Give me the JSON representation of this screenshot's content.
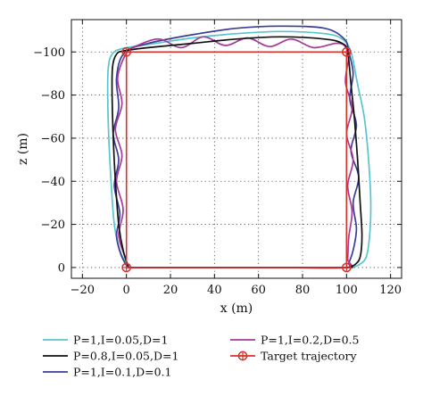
{
  "chart_data": {
    "type": "line",
    "title": "",
    "xlabel": "x (m)",
    "ylabel": "z (m)",
    "xlim": [
      -25,
      125
    ],
    "ylim": [
      5,
      -115
    ],
    "xticks": [
      -20,
      0,
      20,
      40,
      60,
      80,
      100,
      120
    ],
    "yticks": [
      -100,
      -80,
      -60,
      -40,
      -20,
      0
    ],
    "xtick_labels": [
      "−20",
      "0",
      "20",
      "40",
      "60",
      "80",
      "100",
      "120"
    ],
    "ytick_labels": [
      "−100",
      "−80",
      "−60",
      "−40",
      "−20",
      "0"
    ],
    "grid": true,
    "legend_position": "bottom",
    "series": [
      {
        "name": "P=1,I=0.05,D=1",
        "color": "#58c4d0",
        "x": [
          1,
          -3,
          -5.5,
          -7,
          -8,
          -8.5,
          -8.2,
          -6.5,
          -2,
          10,
          30,
          50,
          70,
          90,
          98,
          102,
          105,
          108,
          110,
          111,
          110.5,
          109,
          106,
          103,
          100,
          70,
          40,
          10,
          1
        ],
        "z": [
          0,
          -8,
          -20,
          -40,
          -60,
          -80,
          -93,
          -99,
          -101.5,
          -103.5,
          -106.5,
          -108.5,
          -109.5,
          -108.5,
          -106,
          -100,
          -85,
          -70,
          -50,
          -30,
          -15,
          -5,
          -1.5,
          -0.3,
          0,
          0,
          0,
          0,
          0
        ]
      },
      {
        "name": "P=0.8,I=0.05,D=1",
        "color": "#111111",
        "x": [
          1,
          -1.5,
          -3.5,
          -5,
          -6,
          -6.5,
          -6.3,
          -4.5,
          -1,
          10,
          30,
          50,
          70,
          90,
          98,
          100.5,
          102,
          103.5,
          105,
          106.2,
          107,
          106.2,
          104,
          101.5,
          100,
          70,
          40,
          10,
          1
        ],
        "z": [
          0,
          -8,
          -20,
          -40,
          -60,
          -80,
          -93,
          -99,
          -100.5,
          -102,
          -104,
          -106,
          -107,
          -106,
          -104,
          -100,
          -85,
          -70,
          -50,
          -30,
          -15,
          -5,
          -1.5,
          -0.3,
          0,
          0,
          0,
          0,
          0
        ]
      },
      {
        "name": "P=1,I=0.1,D=0.1",
        "color": "#3b3d96",
        "x": [
          0.5,
          -2.5,
          -4.5,
          -3,
          -5.5,
          -3.5,
          -6,
          -3.5,
          -4.5,
          -1,
          10,
          30,
          50,
          70,
          90,
          99,
          101,
          103,
          101.5,
          104.5,
          102,
          105.5,
          103,
          104.5,
          103,
          101,
          100,
          70,
          40,
          10,
          0.5
        ],
        "z": [
          0,
          -6,
          -15,
          -25,
          -38,
          -50,
          -62,
          -74,
          -88,
          -99.5,
          -104,
          -108,
          -111,
          -112,
          -111,
          -106,
          -100,
          -90,
          -78,
          -66,
          -54,
          -42,
          -30,
          -18,
          -8,
          -2,
          0,
          0,
          0,
          0,
          0
        ]
      },
      {
        "name": "P=1,I=0.2,D=0.5",
        "color": "#a63a97",
        "x": [
          1,
          -1,
          -3.5,
          -1.5,
          -4.5,
          -2,
          -5,
          -2,
          -4,
          0,
          5,
          15,
          25,
          35,
          45,
          55,
          65,
          75,
          85,
          95,
          99,
          101,
          99.5,
          102.5,
          100,
          103,
          100.5,
          102.5,
          101,
          100.5,
          100,
          70,
          40,
          10,
          1
        ],
        "z": [
          0,
          -6,
          -15,
          -27,
          -40,
          -52,
          -64,
          -76,
          -88,
          -99.5,
          -103,
          -106,
          -102,
          -107,
          -103,
          -106.5,
          -102.5,
          -106,
          -102,
          -104,
          -103,
          -98,
          -86,
          -74,
          -62,
          -50,
          -38,
          -26,
          -14,
          -4,
          0,
          0,
          0,
          0,
          0
        ]
      },
      {
        "name": "Target trajectory",
        "color": "#d8322b",
        "x": [
          0,
          0,
          100,
          100,
          0
        ],
        "z": [
          0,
          -100,
          -100,
          0,
          0
        ],
        "markers": [
          [
            0,
            -100
          ],
          [
            100,
            -100
          ],
          [
            100,
            0
          ],
          [
            0,
            0
          ]
        ],
        "marker": "circle-cross"
      }
    ]
  }
}
